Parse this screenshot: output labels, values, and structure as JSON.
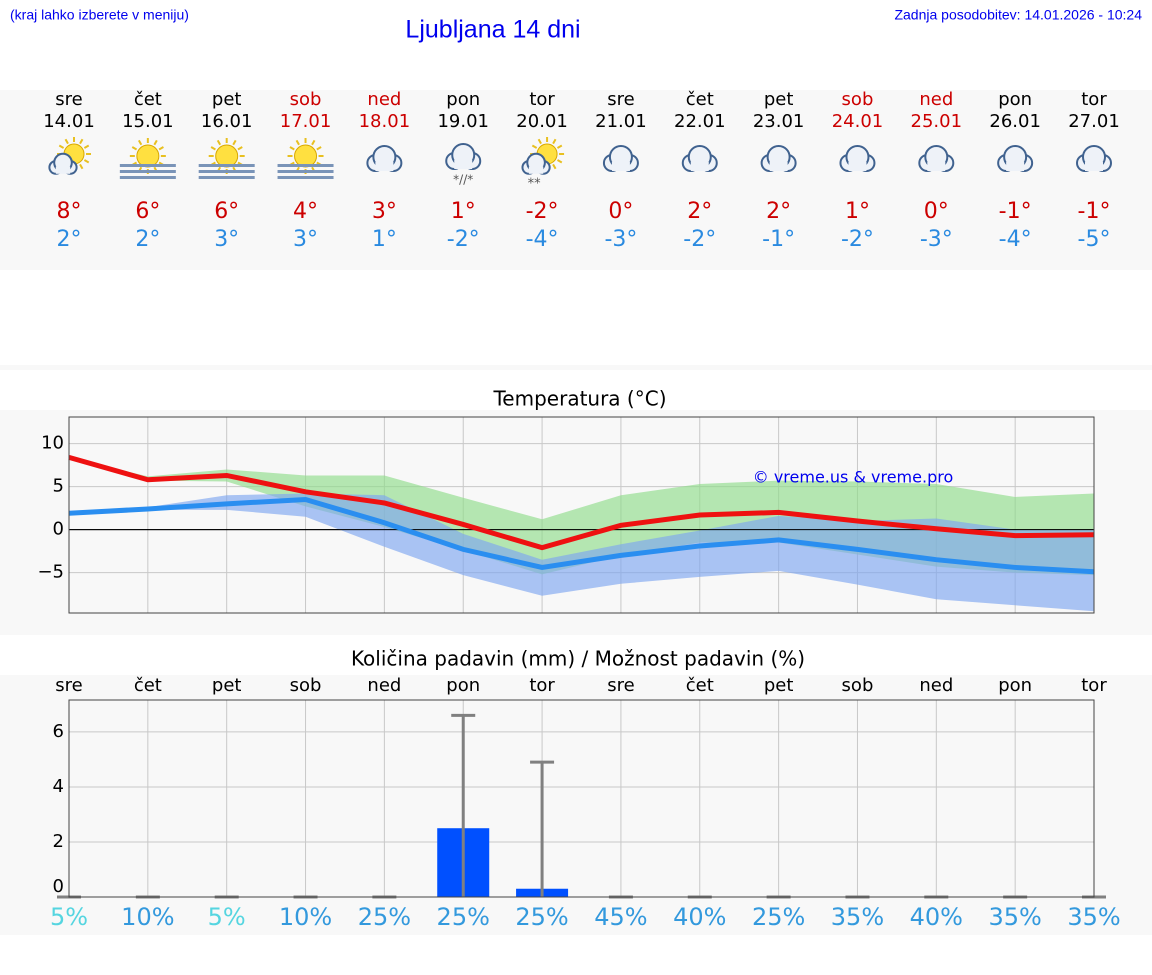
{
  "header": {
    "hint": "(kraj lahko izberete v meniju)",
    "title": "Ljubljana 14 dni",
    "updated": "Zadnja posodobitev: 14.01.2026 - 10:24"
  },
  "forecast": {
    "days": [
      {
        "day": "sre",
        "date": "14.01",
        "icon": "partly-cloudy",
        "max": "8°",
        "min": "2°",
        "weekend": false
      },
      {
        "day": "čet",
        "date": "15.01",
        "icon": "sun-fog",
        "max": "6°",
        "min": "2°",
        "weekend": false
      },
      {
        "day": "pet",
        "date": "16.01",
        "icon": "sun-fog",
        "max": "6°",
        "min": "3°",
        "weekend": false
      },
      {
        "day": "sob",
        "date": "17.01",
        "icon": "sun-fog",
        "max": "4°",
        "min": "3°",
        "weekend": true
      },
      {
        "day": "ned",
        "date": "18.01",
        "icon": "cloudy",
        "max": "3°",
        "min": "1°",
        "weekend": true
      },
      {
        "day": "pon",
        "date": "19.01",
        "icon": "cloudy-sleet",
        "max": "1°",
        "min": "-2°",
        "weekend": false
      },
      {
        "day": "tor",
        "date": "20.01",
        "icon": "partly-cloudy-snow",
        "max": "-2°",
        "min": "-4°",
        "weekend": false
      },
      {
        "day": "sre",
        "date": "21.01",
        "icon": "cloudy",
        "max": "0°",
        "min": "-3°",
        "weekend": false
      },
      {
        "day": "čet",
        "date": "22.01",
        "icon": "cloudy",
        "max": "2°",
        "min": "-2°",
        "weekend": false
      },
      {
        "day": "pet",
        "date": "23.01",
        "icon": "cloudy",
        "max": "2°",
        "min": "-1°",
        "weekend": false
      },
      {
        "day": "sob",
        "date": "24.01",
        "icon": "cloudy",
        "max": "1°",
        "min": "-2°",
        "weekend": true
      },
      {
        "day": "ned",
        "date": "25.01",
        "icon": "cloudy",
        "max": "0°",
        "min": "-3°",
        "weekend": true
      },
      {
        "day": "pon",
        "date": "26.01",
        "icon": "cloudy",
        "max": "-1°",
        "min": "-4°",
        "weekend": false
      },
      {
        "day": "tor",
        "date": "27.01",
        "icon": "cloudy",
        "max": "-1°",
        "min": "-5°",
        "weekend": false
      }
    ]
  },
  "chart_data": [
    {
      "type": "line",
      "title": "Temperatura (°C)",
      "categories": [
        null,
        null,
        null,
        null,
        null,
        null,
        null,
        null,
        null,
        null,
        null,
        null,
        null,
        null
      ],
      "ylim": [
        -9.7,
        13.1
      ],
      "yticks": [
        {
          "value": -5,
          "label": "−5"
        },
        0,
        5,
        10
      ],
      "grid": true,
      "annotation": "© vreme.us & vreme.pro",
      "bands": [
        {
          "color": "#8fdc8a",
          "low": [
            8.3,
            5.7,
            5.6,
            2.7,
            0.3,
            -2.4,
            -5.2,
            -3.0,
            -1.5,
            -1.5,
            -2.9,
            -4.3,
            -5.0,
            -5.3
          ],
          "high": [
            8.4,
            6.2,
            7.0,
            6.3,
            6.3,
            3.7,
            1.2,
            4.0,
            5.3,
            5.7,
            5.6,
            5.3,
            3.8,
            4.2
          ]
        },
        {
          "color": "#7ea6f0",
          "low": [
            1.7,
            2.3,
            2.3,
            1.5,
            -2.0,
            -5.3,
            -7.7,
            -6.3,
            -5.5,
            -4.8,
            -6.4,
            -8.1,
            -8.8,
            -9.5
          ],
          "high": [
            2.0,
            2.6,
            4.0,
            4.2,
            4.0,
            -0.5,
            -3.5,
            -1.7,
            -0.1,
            1.6,
            1.0,
            1.3,
            0.0,
            0.0
          ]
        }
      ],
      "series": [
        {
          "color": "#ee1111",
          "values": [
            8.4,
            5.8,
            6.3,
            4.4,
            3.1,
            0.6,
            -2.1,
            0.5,
            1.7,
            2.0,
            1.0,
            0.1,
            -0.7,
            -0.6
          ]
        },
        {
          "color": "#2a8ef0",
          "values": [
            1.9,
            2.4,
            3.0,
            3.5,
            0.8,
            -2.3,
            -4.4,
            -3.0,
            -1.9,
            -1.2,
            -2.3,
            -3.5,
            -4.4,
            -4.9
          ]
        }
      ]
    },
    {
      "type": "bar",
      "title": "Količina padavin (mm) / Možnost padavin (%)",
      "categories": [
        "sre",
        "čet",
        "pet",
        "sob",
        "ned",
        "pon",
        "tor",
        "sre",
        "čet",
        "pet",
        "sob",
        "ned",
        "pon",
        "tor"
      ],
      "ylim": [
        0,
        7.16
      ],
      "yticks": [
        0,
        2,
        4,
        6
      ],
      "grid": true,
      "color": "#0050ff",
      "error_color": "#808080",
      "values": [
        0,
        0,
        0,
        0,
        0,
        2.5,
        0.3,
        0,
        0,
        0,
        0,
        0,
        0,
        0
      ],
      "upper": [
        0,
        0,
        0,
        0,
        0,
        6.6,
        4.9,
        0,
        0,
        0,
        0,
        0,
        0,
        0
      ],
      "probability": {
        "values": [
          5,
          10,
          5,
          10,
          25,
          25,
          25,
          45,
          40,
          25,
          35,
          40,
          35,
          35
        ],
        "value_labels": [
          "5%",
          "10%",
          "5%",
          "10%",
          "25%",
          "25%",
          "25%",
          "45%",
          "40%",
          "25%",
          "35%",
          "40%",
          "35%",
          "35%"
        ],
        "colors": [
          "#55d5e0",
          "#3399dd",
          "#55d5e0",
          "#3399dd",
          "#3399dd",
          "#3399dd",
          "#3399dd",
          "#3399dd",
          "#3399dd",
          "#3399dd",
          "#3399dd",
          "#3399dd",
          "#3399dd",
          "#3399dd"
        ]
      }
    }
  ]
}
